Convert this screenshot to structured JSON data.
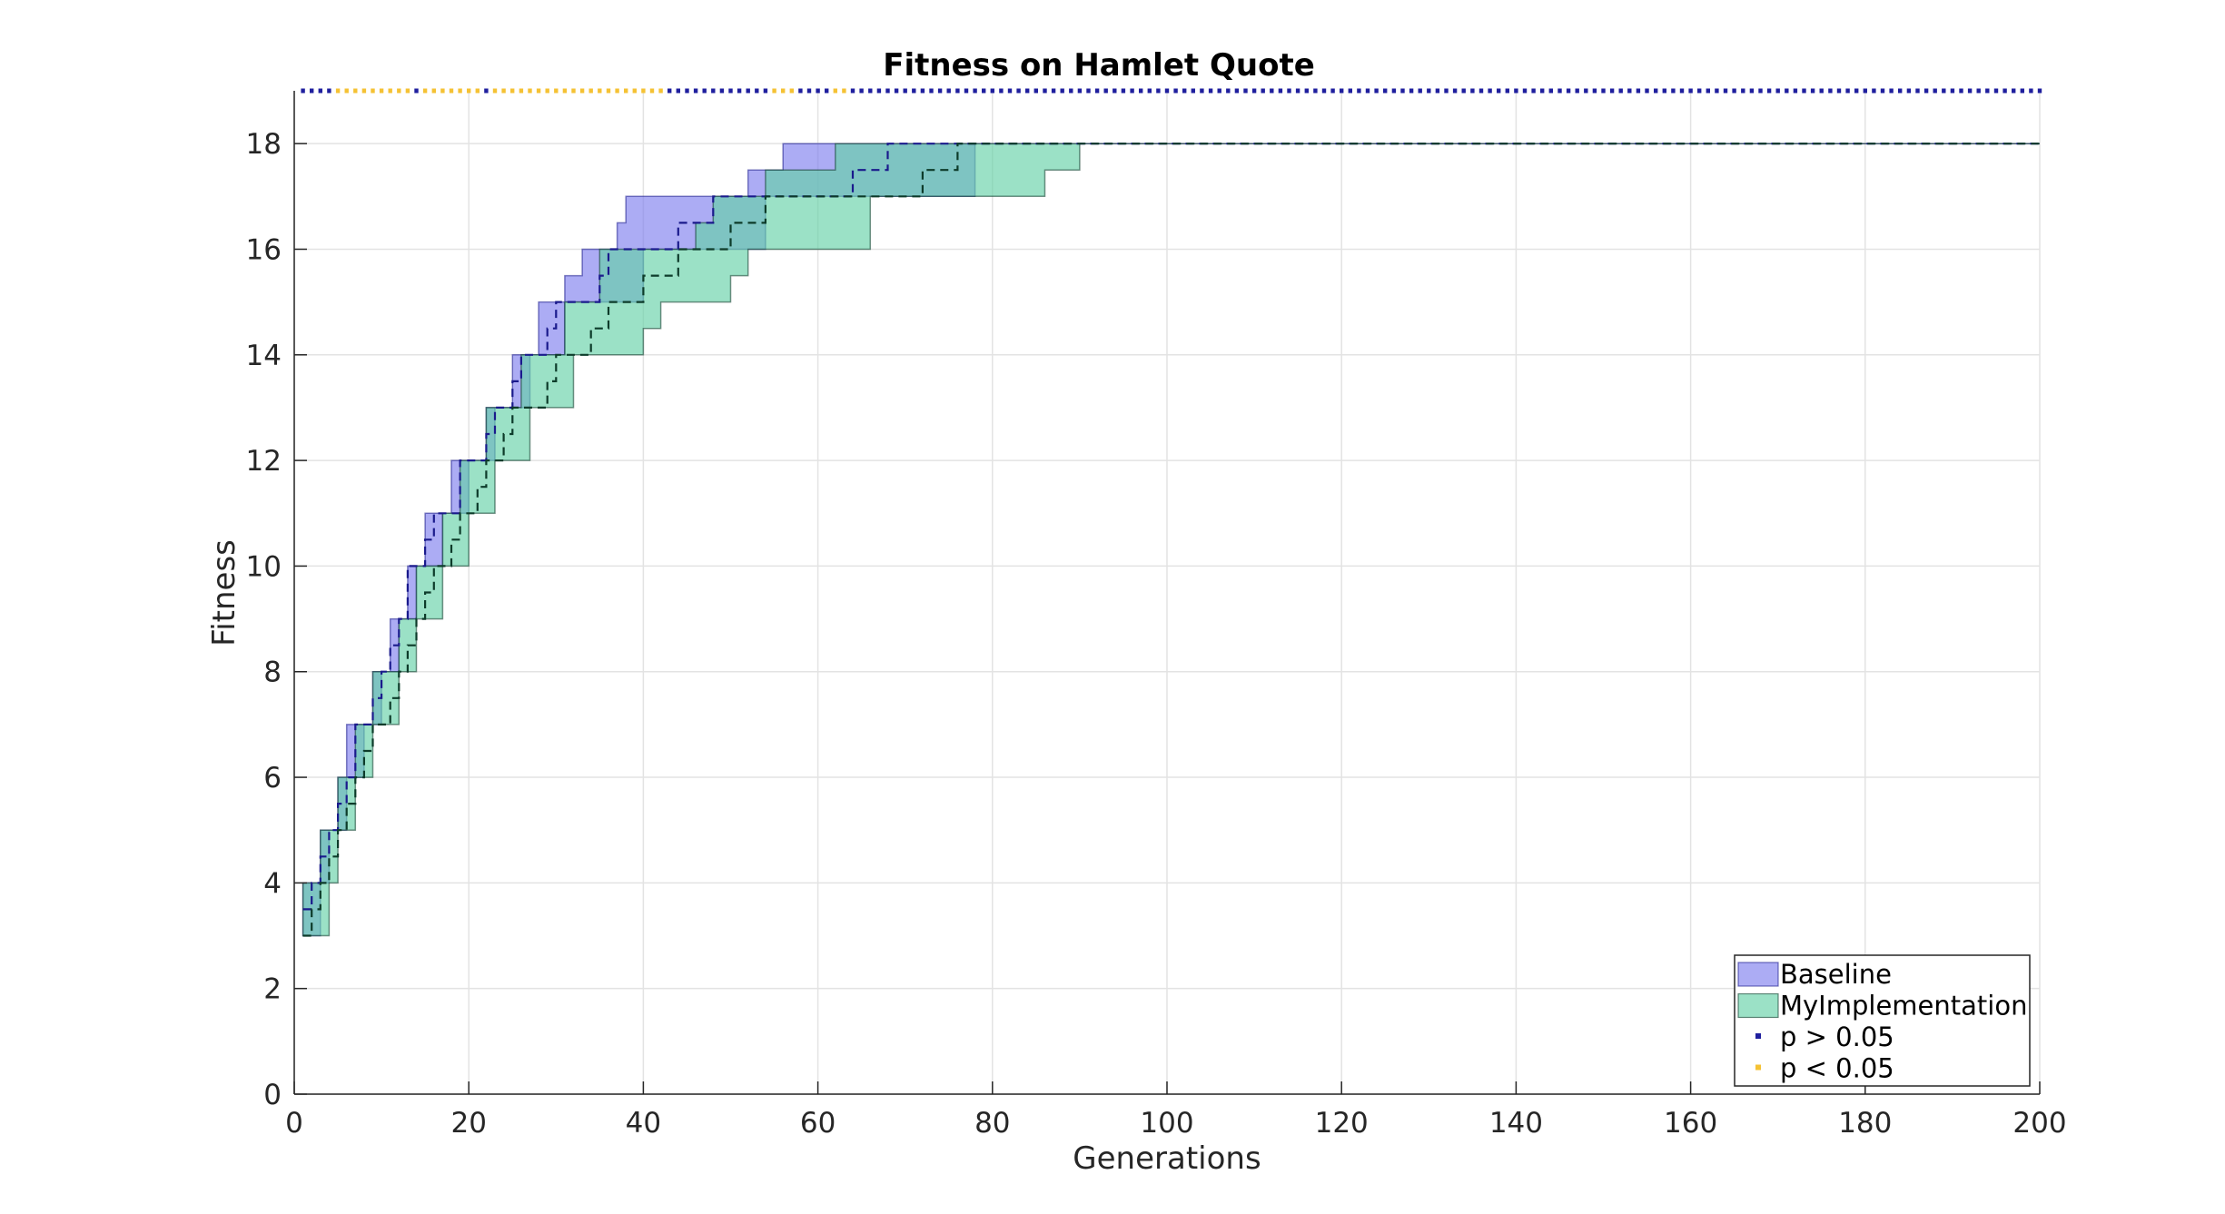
{
  "chart_data": {
    "type": "area",
    "title": "Fitness on Hamlet Quote",
    "xlabel": "Generations",
    "ylabel": "Fitness",
    "xlim": [
      0,
      200
    ],
    "ylim": [
      0,
      19
    ],
    "xticks": [
      0,
      20,
      40,
      60,
      80,
      100,
      120,
      140,
      160,
      180,
      200
    ],
    "yticks": [
      0,
      2,
      4,
      6,
      8,
      10,
      12,
      14,
      16,
      18
    ],
    "grid": true,
    "legend_position": "bottom-right",
    "series": [
      {
        "name": "Baseline",
        "color": "#8080ee",
        "line_color": "#1a1a8c",
        "x": [
          1,
          2,
          3,
          4,
          5,
          6,
          7,
          8,
          9,
          10,
          11,
          12,
          13,
          14,
          15,
          16,
          17,
          18,
          19,
          20,
          21,
          22,
          23,
          24,
          25,
          26,
          27,
          28,
          29,
          30,
          31,
          32,
          33,
          34,
          35,
          36,
          37,
          38,
          39,
          40,
          42,
          44,
          46,
          48,
          50,
          52,
          54,
          56,
          58,
          60,
          62,
          64,
          66,
          68,
          70,
          72,
          74,
          76,
          78,
          80,
          200
        ],
        "lower": [
          3,
          3,
          4,
          5,
          5,
          6,
          6,
          7,
          7,
          8,
          8,
          9,
          9,
          10,
          10,
          10,
          11,
          11,
          11,
          12,
          12,
          12,
          13,
          13,
          13,
          13,
          14,
          14,
          14,
          14,
          15,
          15,
          15,
          15,
          15,
          15,
          15,
          15,
          15,
          16,
          16,
          16,
          16,
          16,
          16,
          16,
          17,
          17,
          17,
          17,
          17,
          17,
          17,
          17,
          17,
          17,
          17,
          17,
          18,
          18,
          18
        ],
        "median": [
          3.5,
          4,
          4.5,
          5,
          5.5,
          6,
          7,
          7,
          7.5,
          8,
          8.5,
          9,
          10,
          10,
          10.5,
          11,
          11,
          11,
          12,
          12,
          12,
          12.5,
          13,
          13,
          13.5,
          14,
          14,
          14,
          14.5,
          15,
          15,
          15,
          15,
          15,
          15.5,
          16,
          16,
          16,
          16,
          16,
          16,
          16.5,
          16.5,
          17,
          17,
          17,
          17,
          17,
          17,
          17,
          17,
          17.5,
          17.5,
          18,
          18,
          18,
          18,
          18,
          18,
          18,
          18
        ],
        "upper": [
          4,
          4,
          5,
          5,
          6,
          7,
          7,
          7,
          8,
          8,
          9,
          9,
          10,
          10,
          11,
          11,
          11,
          12,
          12,
          12,
          12,
          13,
          13,
          13,
          14,
          14,
          14,
          15,
          15,
          15,
          15.5,
          15.5,
          16,
          16,
          16,
          16,
          16.5,
          17,
          17,
          17,
          17,
          17,
          17,
          17,
          17,
          17.5,
          17.5,
          18,
          18,
          18,
          18,
          18,
          18,
          18,
          18,
          18,
          18,
          18,
          18,
          18,
          18
        ]
      },
      {
        "name": "MyImplementation",
        "color": "#66d1a8",
        "line_color": "#0d3b2a",
        "x": [
          1,
          2,
          3,
          4,
          5,
          6,
          7,
          8,
          9,
          10,
          11,
          12,
          13,
          14,
          15,
          16,
          17,
          18,
          19,
          20,
          21,
          22,
          23,
          24,
          25,
          26,
          27,
          28,
          29,
          30,
          31,
          32,
          33,
          34,
          35,
          36,
          37,
          38,
          39,
          40,
          42,
          44,
          46,
          48,
          50,
          52,
          54,
          56,
          58,
          60,
          62,
          64,
          66,
          68,
          70,
          72,
          74,
          76,
          78,
          80,
          82,
          84,
          86,
          88,
          90,
          200
        ],
        "lower": [
          3,
          3,
          3,
          4,
          5,
          5,
          6,
          6,
          7,
          7,
          7,
          8,
          8,
          9,
          9,
          9,
          10,
          10,
          10,
          11,
          11,
          11,
          12,
          12,
          12,
          12,
          13,
          13,
          13,
          13,
          13,
          14,
          14,
          14,
          14,
          14,
          14,
          14,
          14,
          14.5,
          15,
          15,
          15,
          15,
          15.5,
          16,
          16,
          16,
          16,
          16,
          16,
          16,
          17,
          17,
          17,
          17,
          17,
          17,
          17,
          17,
          17,
          17,
          17.5,
          17.5,
          18,
          18
        ],
        "median": [
          3,
          3.5,
          4,
          4.5,
          5,
          5.5,
          6,
          6.5,
          7,
          7,
          7.5,
          8,
          8.5,
          9,
          9.5,
          10,
          10,
          10.5,
          11,
          11,
          11.5,
          12,
          12,
          12.5,
          13,
          13,
          13,
          13,
          13.5,
          14,
          14,
          14,
          14,
          14.5,
          14.5,
          15,
          15,
          15,
          15,
          15.5,
          15.5,
          16,
          16,
          16,
          16.5,
          16.5,
          17,
          17,
          17,
          17,
          17,
          17,
          17,
          17,
          17,
          17.5,
          17.5,
          18,
          18,
          18,
          18,
          18,
          18,
          18,
          18,
          18
        ],
        "upper": [
          4,
          4,
          5,
          5,
          6,
          6,
          7,
          7,
          8,
          8,
          8,
          9,
          9,
          10,
          10,
          10,
          11,
          11,
          12,
          12,
          12,
          13,
          13,
          13,
          13,
          14,
          14,
          14,
          14,
          14,
          15,
          15,
          15,
          15,
          16,
          16,
          16,
          16,
          16,
          16,
          16,
          16,
          16.5,
          17,
          17,
          17,
          17.5,
          17.5,
          17.5,
          17.5,
          18,
          18,
          18,
          18,
          18,
          18,
          18,
          18,
          18,
          18,
          18,
          18,
          18,
          18,
          18,
          18
        ]
      }
    ],
    "significance": {
      "y": 19,
      "entries": [
        {
          "label": "p > 0.05",
          "color": "#1f1f9e"
        },
        {
          "label": "p < 0.05",
          "color": "#f5c234"
        }
      ],
      "significant_ranges": [
        [
          5,
          13
        ],
        [
          15,
          21
        ],
        [
          23,
          42
        ],
        [
          55,
          57
        ],
        [
          62,
          63
        ]
      ]
    }
  }
}
